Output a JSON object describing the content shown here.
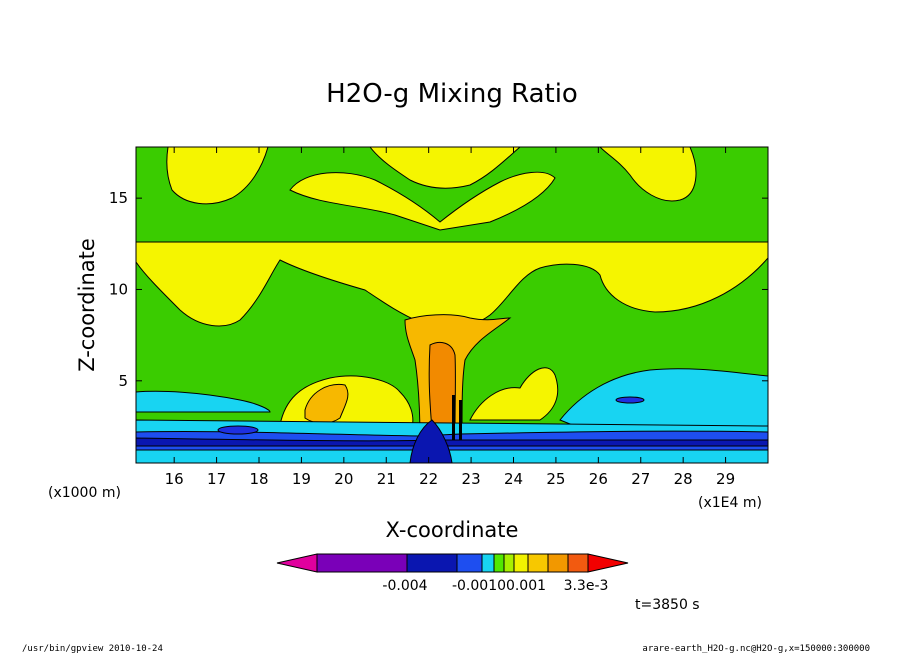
{
  "chart_data": {
    "type": "heatmap",
    "title": "H2O-g Mixing Ratio",
    "xlabel": "X-coordinate",
    "ylabel": "Z-coordinate",
    "x_unit": "(x1E4 m)",
    "y_unit": "(x1000 m)",
    "xlim": [
      15.1,
      30.0
    ],
    "ylim": [
      0.5,
      17.8
    ],
    "x_ticks": [
      16,
      17,
      18,
      19,
      20,
      21,
      22,
      23,
      24,
      25,
      26,
      27,
      28,
      29
    ],
    "y_ticks": [
      5,
      10,
      15
    ],
    "colorbar": {
      "tick_labels": [
        "-0.004",
        "-0.0010",
        "0.001",
        "3.3e-3"
      ],
      "colors": [
        "#e0009e",
        "#7a00b8",
        "#0a16b0",
        "#1e4ef0",
        "#18d4f2",
        "#52e800",
        "#a8f000",
        "#f2f200",
        "#f7c800",
        "#f29800",
        "#f25a10",
        "#f20000"
      ]
    },
    "regions": [
      {
        "level": "background",
        "color": "#3acc00"
      },
      {
        "level": "yellow-upper",
        "color": "#f5f500"
      },
      {
        "level": "orange-core",
        "color": "#f59000"
      },
      {
        "level": "cyan-lower",
        "color": "#18d4f2"
      },
      {
        "level": "blue-lower",
        "color": "#1e30e0"
      }
    ],
    "time_label": "t=3850 s"
  },
  "footer": {
    "left": "/usr/bin/gpview  2010-10-24",
    "right": "arare-earth_H2O-g.nc@H2O-g,x=150000:300000"
  }
}
